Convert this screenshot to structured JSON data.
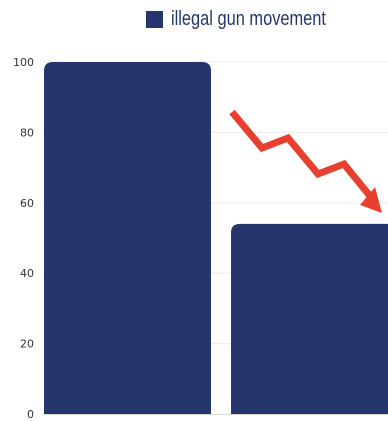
{
  "chart_data": {
    "type": "bar",
    "categories": [
      "",
      ""
    ],
    "series": [
      {
        "name": "illegal gun movement",
        "values": [
          100,
          54
        ],
        "color": "#26356e"
      }
    ],
    "title": "",
    "xlabel": "",
    "ylabel": "",
    "ylim": [
      0,
      100
    ],
    "yticks": [
      0,
      20,
      40,
      60,
      80,
      100
    ],
    "grid": true,
    "legend_position": "top",
    "annotation": {
      "type": "zigzag-down-arrow",
      "color": "#e8402f"
    }
  }
}
